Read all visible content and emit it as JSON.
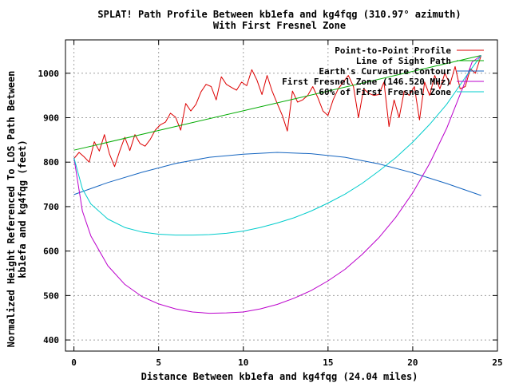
{
  "chart_data": {
    "type": "line",
    "title_line1": "SPLAT! Path Profile Between kb1efa and kg4fqg (310.97° azimuth)",
    "title_line2": "With First Fresnel Zone",
    "xlabel": "Distance Between kb1efa and kg4fqg (24.04 miles)",
    "ylabel_line1": "Normalized Height Referenced To LOS Path Between",
    "ylabel_line2": "kb1efa and kg4fqg (feet)",
    "xlim": [
      -0.5,
      25
    ],
    "ylim": [
      375,
      1075
    ],
    "xticks": [
      0,
      5,
      10,
      15,
      20,
      25
    ],
    "yticks": [
      400,
      500,
      600,
      700,
      800,
      900,
      1000
    ],
    "grid": true,
    "legend_position": "top-right",
    "series": [
      {
        "name": "Point-to-Point Profile",
        "color": "#dd0000",
        "x": [
          0,
          0.3,
          0.6,
          0.9,
          1.2,
          1.5,
          1.8,
          2.1,
          2.4,
          2.7,
          3.0,
          3.3,
          3.6,
          3.9,
          4.2,
          4.5,
          4.8,
          5.1,
          5.4,
          5.7,
          6.0,
          6.3,
          6.6,
          6.9,
          7.2,
          7.5,
          7.8,
          8.1,
          8.4,
          8.7,
          9.0,
          9.3,
          9.6,
          9.9,
          10.2,
          10.5,
          10.8,
          11.1,
          11.4,
          11.7,
          12.0,
          12.3,
          12.6,
          12.9,
          13.2,
          13.5,
          13.8,
          14.1,
          14.4,
          14.7,
          15.0,
          15.3,
          15.6,
          15.9,
          16.2,
          16.5,
          16.8,
          17.1,
          17.4,
          17.7,
          18.0,
          18.3,
          18.6,
          18.9,
          19.2,
          19.5,
          19.8,
          20.1,
          20.4,
          20.7,
          21.0,
          21.3,
          21.6,
          21.9,
          22.2,
          22.5,
          22.8,
          23.1,
          23.4,
          23.7,
          24.04
        ],
        "y": [
          808,
          822,
          812,
          800,
          846,
          825,
          862,
          818,
          790,
          825,
          856,
          826,
          862,
          842,
          836,
          851,
          872,
          884,
          890,
          910,
          901,
          872,
          932,
          915,
          930,
          958,
          975,
          970,
          940,
          992,
          975,
          968,
          962,
          980,
          972,
          1008,
          985,
          952,
          995,
          960,
          932,
          905,
          870,
          960,
          935,
          940,
          950,
          970,
          945,
          915,
          905,
          940,
          965,
          980,
          995,
          970,
          900,
          965,
          955,
          950,
          952,
          980,
          880,
          940,
          900,
          960,
          950,
          970,
          895,
          980,
          950,
          995,
          965,
          1000,
          975,
          1015,
          965,
          970,
          1010,
          1000,
          1040
        ]
      },
      {
        "name": "Line of Sight Path",
        "color": "#00aa00",
        "x": [
          0,
          24.04
        ],
        "y": [
          827,
          1040
        ]
      },
      {
        "name": "Earth's Curvature Contour",
        "color": "#1565c0",
        "x": [
          0,
          2,
          4,
          6,
          8,
          10,
          12,
          14,
          16,
          18,
          20,
          22,
          24.04
        ],
        "y": [
          727,
          754,
          777,
          797,
          811,
          818,
          822,
          819,
          811,
          796,
          776,
          752,
          725
        ]
      },
      {
        "name": "First Fresnel Zone (146.520 MHz)",
        "color": "#bb00cc",
        "x": [
          0,
          0.5,
          1,
          2,
          3,
          4,
          5,
          6,
          7,
          8,
          9,
          10,
          11,
          12,
          13,
          14,
          15,
          16,
          17,
          18,
          19,
          20,
          21,
          22,
          23,
          23.5,
          24.04
        ],
        "y": [
          810,
          690,
          634,
          567,
          525,
          498,
          481,
          470,
          463,
          460,
          461,
          463,
          470,
          480,
          494,
          511,
          533,
          559,
          592,
          630,
          676,
          731,
          797,
          876,
          972,
          1025,
          1040
        ]
      },
      {
        "name": "60% of First Fresnel Zone",
        "color": "#00cccc",
        "x": [
          0,
          0.5,
          1,
          2,
          3,
          4,
          5,
          6,
          7,
          8,
          9,
          10,
          11,
          12,
          13,
          14,
          15,
          16,
          17,
          18,
          19,
          20,
          21,
          22,
          23,
          23.5,
          24.04
        ],
        "y": [
          810,
          740,
          706,
          672,
          653,
          643,
          638,
          636,
          636,
          637,
          640,
          645,
          653,
          663,
          675,
          690,
          708,
          728,
          752,
          780,
          810,
          845,
          885,
          930,
          985,
          1012,
          1040
        ]
      }
    ]
  }
}
